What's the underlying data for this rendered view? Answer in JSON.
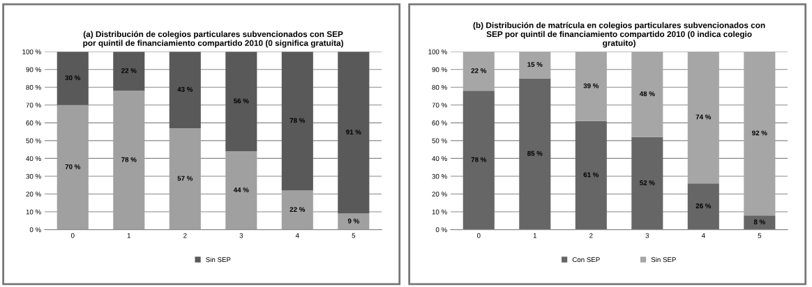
{
  "chart_data": [
    {
      "type": "bar",
      "stacked": true,
      "title": "(a) Distribución de colegios particulares subvencionados con SEP\npor quintil de financiamiento compartido 2010 (0 significa gratuita)",
      "categories": [
        "0",
        "1",
        "2",
        "3",
        "4",
        "5"
      ],
      "series": [
        {
          "color": "#a0a0a0",
          "values": [
            70,
            78,
            57,
            44,
            22,
            9
          ],
          "value_labels": [
            "70 %",
            "78 %",
            "57 %",
            "44 %",
            "22 %",
            "9 %"
          ]
        },
        {
          "name": "Sin SEP",
          "color": "#595959",
          "values": [
            30,
            22,
            43,
            56,
            78,
            91
          ],
          "value_labels": [
            "30 %",
            "22 %",
            "43 %",
            "56 %",
            "78 %",
            "91 %"
          ]
        }
      ],
      "ylim": [
        0,
        100
      ],
      "yticks": [
        {
          "value": 0,
          "label": "0 %"
        },
        {
          "value": 10,
          "label": "10 %"
        },
        {
          "value": 20,
          "label": "20 %"
        },
        {
          "value": 30,
          "label": "30 %"
        },
        {
          "value": 40,
          "label": "40 %"
        },
        {
          "value": 50,
          "label": "50 %"
        },
        {
          "value": 60,
          "label": "60 %"
        },
        {
          "value": 70,
          "label": "70 %"
        },
        {
          "value": 80,
          "label": "80 %"
        },
        {
          "value": 90,
          "label": "90 %"
        },
        {
          "value": 100,
          "label": "100 %"
        }
      ],
      "grid": "y",
      "legend": "bottom"
    },
    {
      "type": "bar",
      "stacked": true,
      "title": "(b) Distribución de matrícula en colegios particulares subvencionados con\nSEP por quintil de financiamiento compartido 2010 (0 indica colegio\ngratuito)",
      "categories": [
        "0",
        "1",
        "2",
        "3",
        "4",
        "5"
      ],
      "series": [
        {
          "name": "Con SEP",
          "color": "#666666",
          "values": [
            78,
            85,
            61,
            52,
            26,
            8
          ],
          "value_labels": [
            "78 %",
            "85 %",
            "61 %",
            "52 %",
            "26 %",
            "8 %"
          ]
        },
        {
          "name": "Sin SEP",
          "color": "#a6a6a6",
          "values": [
            22,
            15,
            39,
            48,
            74,
            92
          ],
          "value_labels": [
            "22 %",
            "15 %",
            "39 %",
            "48 %",
            "74 %",
            "92 %"
          ]
        }
      ],
      "ylim": [
        0,
        100
      ],
      "yticks": [
        {
          "value": 0,
          "label": "0 %"
        },
        {
          "value": 10,
          "label": "10 %"
        },
        {
          "value": 20,
          "label": "20 %"
        },
        {
          "value": 30,
          "label": "30 %"
        },
        {
          "value": 40,
          "label": "40 %"
        },
        {
          "value": 50,
          "label": "50 %"
        },
        {
          "value": 60,
          "label": "60 %"
        },
        {
          "value": 70,
          "label": "70 %"
        },
        {
          "value": 80,
          "label": "80 %"
        },
        {
          "value": 90,
          "label": "90 %"
        },
        {
          "value": 100,
          "label": "100 %"
        }
      ],
      "grid": "y",
      "legend": "bottom"
    }
  ]
}
